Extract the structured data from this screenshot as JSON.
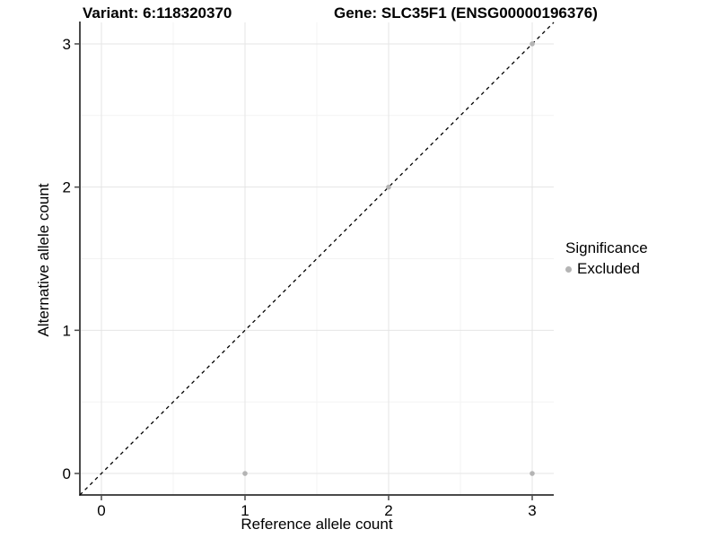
{
  "chart_data": {
    "type": "scatter",
    "title_left": "Variant: 6:118320370",
    "title_right": "Gene: SLC35F1 (ENSG00000196376)",
    "xlabel": "Reference allele count",
    "ylabel": "Alternative allele count",
    "xlim": [
      -0.15,
      3.15
    ],
    "ylim": [
      -0.15,
      3.15
    ],
    "x_ticks": [
      0,
      1,
      2,
      3
    ],
    "y_ticks": [
      0,
      1,
      2,
      3
    ],
    "minor_grid": [
      0.5,
      1.5,
      2.5
    ],
    "grid": true,
    "series": [
      {
        "name": "Excluded",
        "color": "#b4b4b4",
        "points": [
          [
            1,
            0
          ],
          [
            3,
            0
          ],
          [
            2,
            2
          ],
          [
            3,
            3
          ]
        ]
      }
    ],
    "reference_line": {
      "style": "dashed",
      "color": "#000000",
      "from": [
        -0.15,
        -0.15
      ],
      "to": [
        3.15,
        3.15
      ]
    },
    "legend": {
      "title": "Significance",
      "position": "right",
      "items": [
        {
          "label": "Excluded",
          "color": "#b4b4b4"
        }
      ]
    },
    "style": {
      "axis_color": "#4a4a4a",
      "tick_label_color": "#000000",
      "major_grid_color": "#e5e5e5",
      "minor_grid_color": "#f3f3f3",
      "background": "#ffffff"
    }
  }
}
